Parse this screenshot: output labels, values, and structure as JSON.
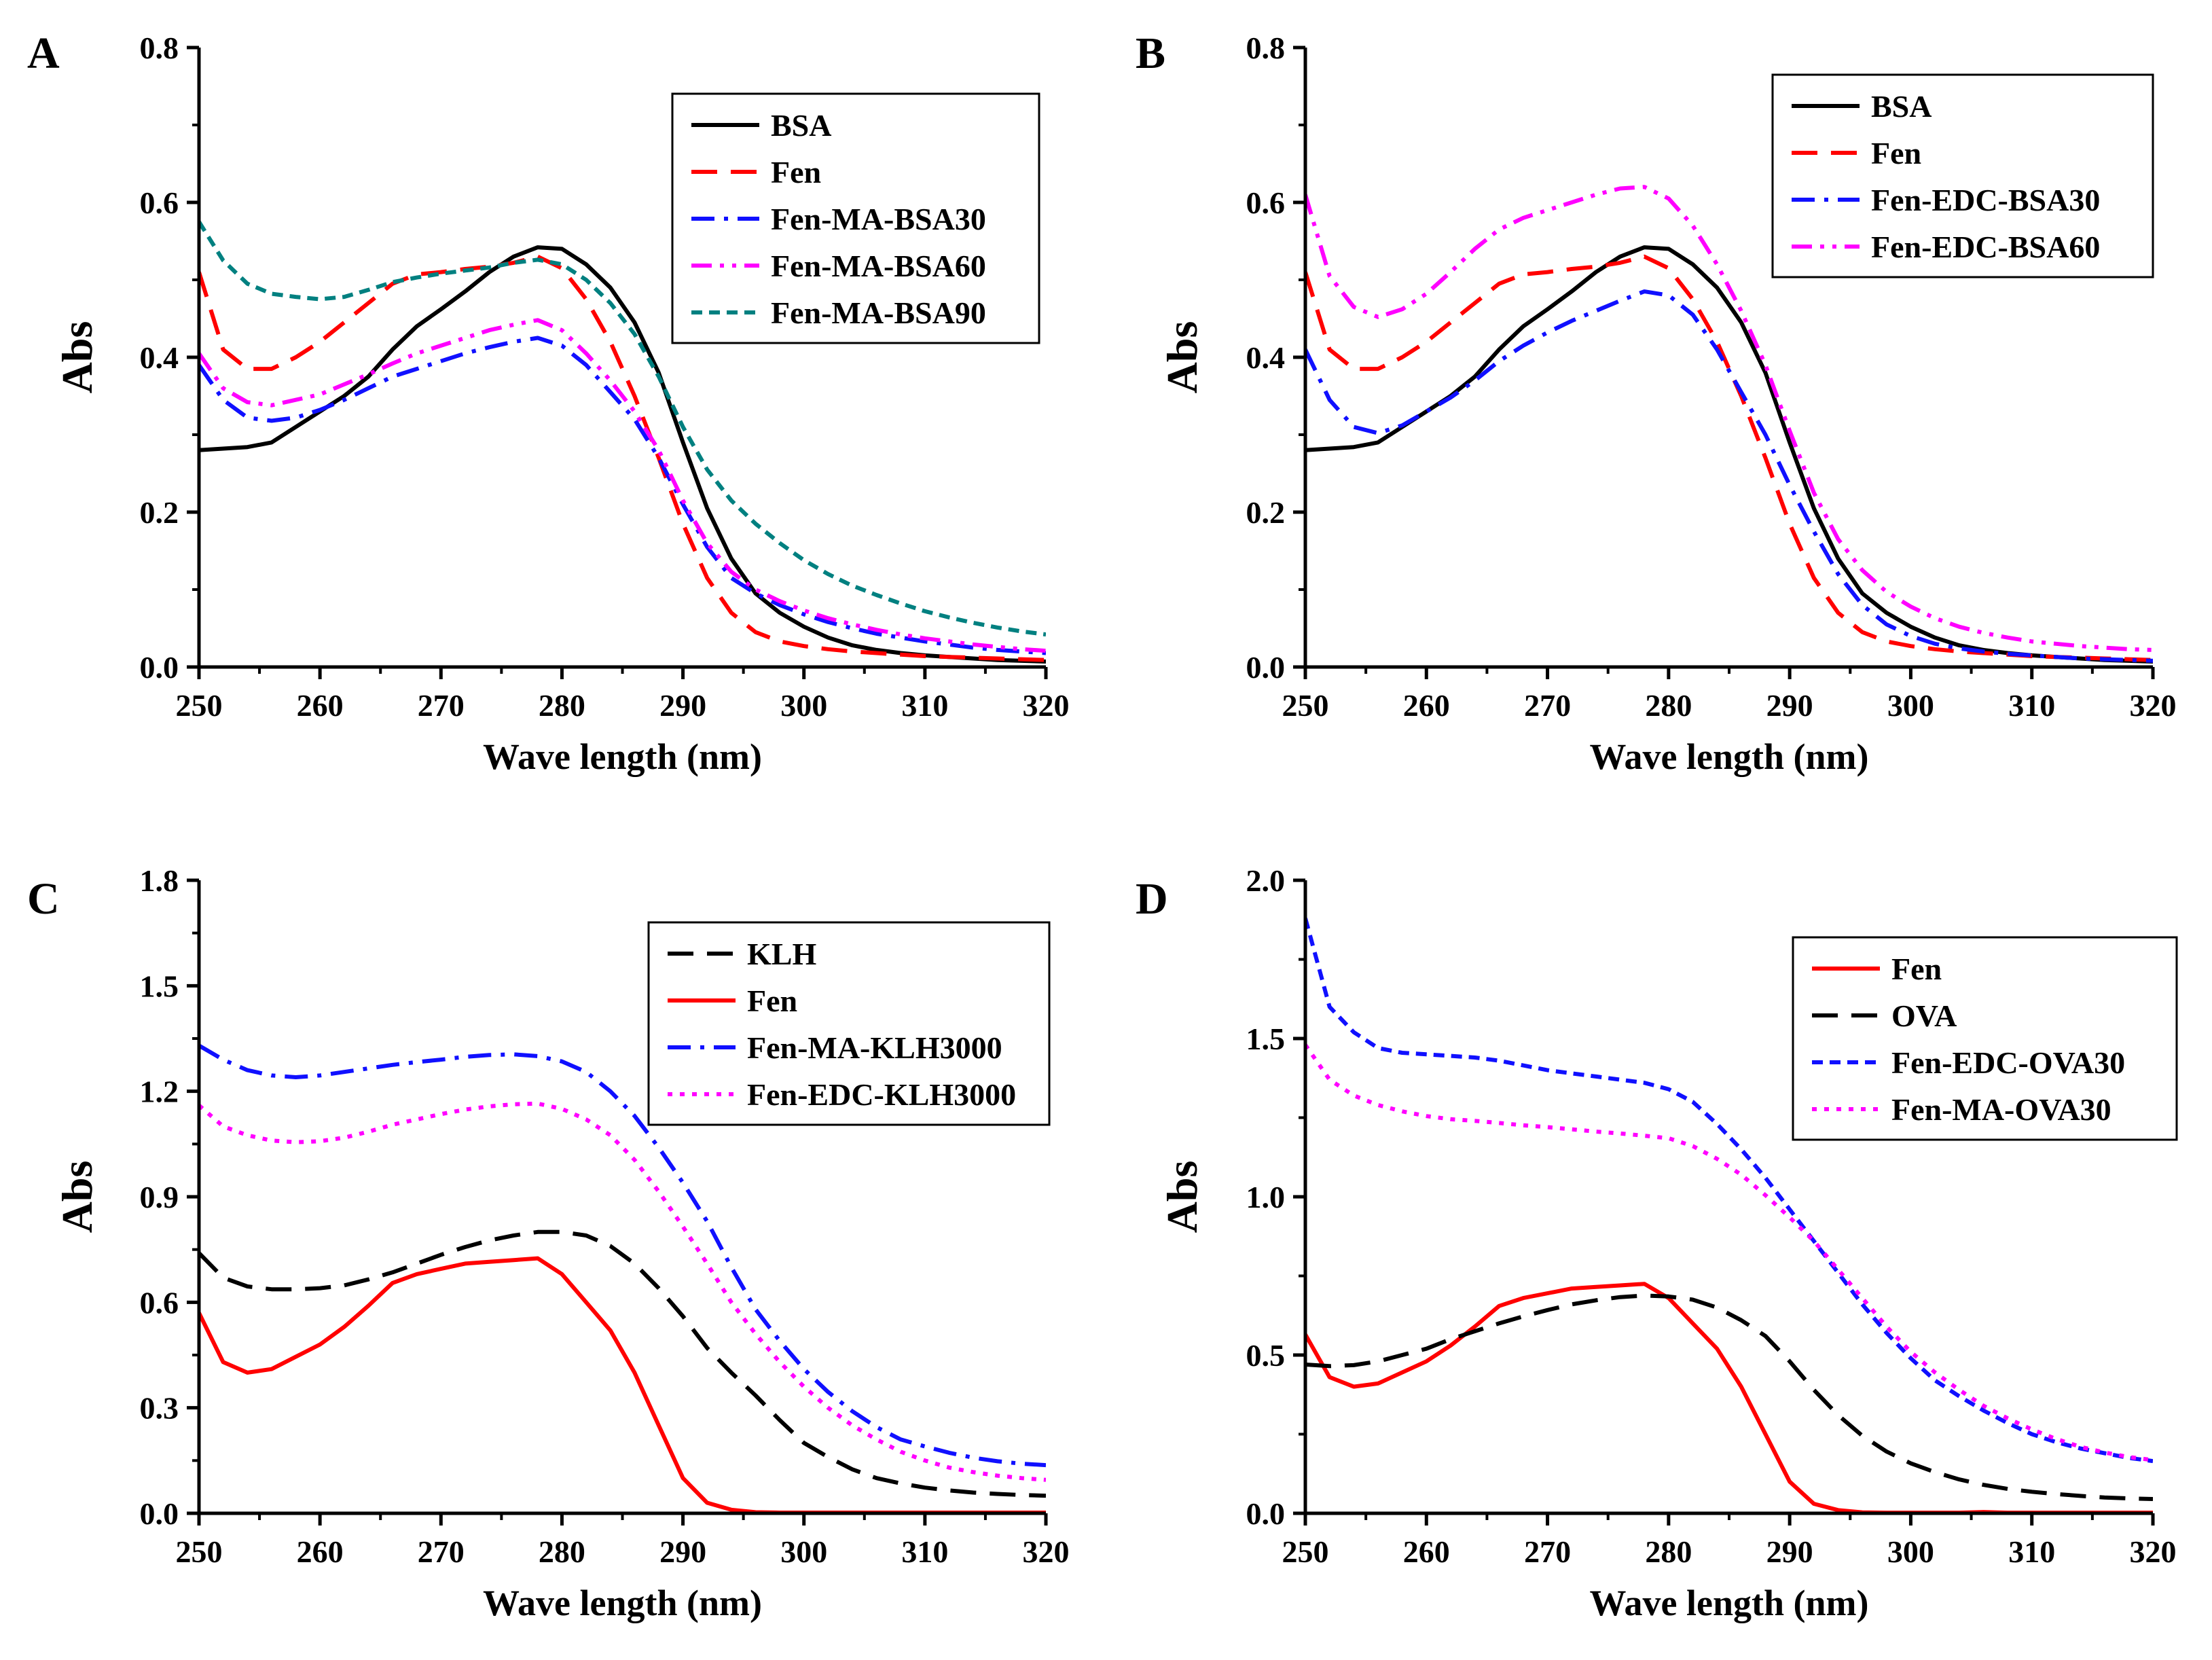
{
  "figure": {
    "panels": [
      {
        "label": "A"
      },
      {
        "label": "B"
      },
      {
        "label": "C"
      },
      {
        "label": "D"
      }
    ]
  },
  "chart_data": [
    {
      "panel": "A",
      "type": "line",
      "xlabel": "Wave length (nm)",
      "ylabel": "Abs",
      "xlim": [
        250,
        320
      ],
      "ylim": [
        0.0,
        0.8
      ],
      "xticks": [
        250,
        260,
        270,
        280,
        290,
        300,
        310,
        320
      ],
      "yticks": [
        0.0,
        0.2,
        0.4,
        0.6,
        0.8
      ],
      "ytick_labels": [
        "0.0",
        "0.2",
        "0.4",
        "0.6",
        "0.8"
      ],
      "legend_position": "top-right",
      "x": [
        250,
        252,
        254,
        256,
        258,
        260,
        262,
        264,
        266,
        268,
        270,
        272,
        274,
        276,
        278,
        280,
        282,
        284,
        286,
        288,
        290,
        292,
        294,
        296,
        298,
        300,
        302,
        304,
        306,
        308,
        310,
        312,
        314,
        316,
        318,
        320
      ],
      "series": [
        {
          "name": "BSA",
          "color": "#000000",
          "dash": "solid",
          "values": [
            0.28,
            0.282,
            0.284,
            0.29,
            0.31,
            0.33,
            0.35,
            0.375,
            0.41,
            0.44,
            0.462,
            0.485,
            0.51,
            0.53,
            0.542,
            0.54,
            0.52,
            0.49,
            0.445,
            0.38,
            0.29,
            0.205,
            0.14,
            0.095,
            0.07,
            0.052,
            0.038,
            0.028,
            0.022,
            0.018,
            0.015,
            0.013,
            0.011,
            0.009,
            0.008,
            0.007
          ]
        },
        {
          "name": "Fen",
          "color": "#ff0000",
          "dash": "dashed",
          "values": [
            0.51,
            0.41,
            0.385,
            0.385,
            0.4,
            0.42,
            0.445,
            0.47,
            0.495,
            0.507,
            0.51,
            0.514,
            0.517,
            0.522,
            0.53,
            0.515,
            0.475,
            0.42,
            0.35,
            0.27,
            0.185,
            0.115,
            0.07,
            0.045,
            0.033,
            0.027,
            0.023,
            0.02,
            0.018,
            0.016,
            0.014,
            0.013,
            0.012,
            0.011,
            0.01,
            0.009
          ]
        },
        {
          "name": "Fen-MA-BSA30",
          "color": "#1010ff",
          "dash": "dashdot",
          "values": [
            0.39,
            0.345,
            0.322,
            0.318,
            0.322,
            0.332,
            0.345,
            0.36,
            0.375,
            0.385,
            0.395,
            0.405,
            0.413,
            0.42,
            0.425,
            0.415,
            0.39,
            0.355,
            0.32,
            0.27,
            0.21,
            0.155,
            0.115,
            0.095,
            0.08,
            0.068,
            0.058,
            0.05,
            0.043,
            0.038,
            0.033,
            0.029,
            0.025,
            0.022,
            0.02,
            0.018
          ]
        },
        {
          "name": "Fen-MA-BSA60",
          "color": "#ff00ff",
          "dash": "dashdotdot",
          "values": [
            0.405,
            0.36,
            0.342,
            0.338,
            0.345,
            0.352,
            0.365,
            0.378,
            0.392,
            0.405,
            0.415,
            0.425,
            0.435,
            0.442,
            0.448,
            0.435,
            0.405,
            0.37,
            0.33,
            0.28,
            0.215,
            0.16,
            0.123,
            0.1,
            0.085,
            0.073,
            0.063,
            0.055,
            0.048,
            0.042,
            0.037,
            0.033,
            0.029,
            0.026,
            0.023,
            0.021
          ]
        },
        {
          "name": "Fen-MA-BSA90",
          "color": "#008080",
          "dash": "shortdash",
          "values": [
            0.575,
            0.525,
            0.495,
            0.482,
            0.478,
            0.475,
            0.478,
            0.487,
            0.497,
            0.503,
            0.508,
            0.512,
            0.516,
            0.522,
            0.526,
            0.52,
            0.5,
            0.47,
            0.43,
            0.375,
            0.31,
            0.255,
            0.215,
            0.185,
            0.16,
            0.138,
            0.12,
            0.105,
            0.093,
            0.082,
            0.072,
            0.064,
            0.057,
            0.051,
            0.046,
            0.042
          ]
        }
      ]
    },
    {
      "panel": "B",
      "type": "line",
      "xlabel": "Wave length (nm)",
      "ylabel": "Abs",
      "xlim": [
        250,
        320
      ],
      "ylim": [
        0.0,
        0.8
      ],
      "xticks": [
        250,
        260,
        270,
        280,
        290,
        300,
        310,
        320
      ],
      "yticks": [
        0.0,
        0.2,
        0.4,
        0.6,
        0.8
      ],
      "ytick_labels": [
        "0.0",
        "0.2",
        "0.4",
        "0.6",
        "0.8"
      ],
      "legend_position": "top-right",
      "x": [
        250,
        252,
        254,
        256,
        258,
        260,
        262,
        264,
        266,
        268,
        270,
        272,
        274,
        276,
        278,
        280,
        282,
        284,
        286,
        288,
        290,
        292,
        294,
        296,
        298,
        300,
        302,
        304,
        306,
        308,
        310,
        312,
        314,
        316,
        318,
        320
      ],
      "series": [
        {
          "name": "BSA",
          "color": "#000000",
          "dash": "solid",
          "values": [
            0.28,
            0.282,
            0.284,
            0.29,
            0.31,
            0.33,
            0.35,
            0.375,
            0.41,
            0.44,
            0.462,
            0.485,
            0.51,
            0.53,
            0.542,
            0.54,
            0.52,
            0.49,
            0.445,
            0.38,
            0.29,
            0.205,
            0.14,
            0.095,
            0.07,
            0.052,
            0.038,
            0.028,
            0.022,
            0.018,
            0.015,
            0.013,
            0.011,
            0.009,
            0.008,
            0.007
          ]
        },
        {
          "name": "Fen",
          "color": "#ff0000",
          "dash": "dashed",
          "values": [
            0.51,
            0.41,
            0.385,
            0.385,
            0.4,
            0.42,
            0.445,
            0.47,
            0.495,
            0.507,
            0.51,
            0.514,
            0.517,
            0.522,
            0.53,
            0.515,
            0.475,
            0.42,
            0.35,
            0.27,
            0.185,
            0.115,
            0.07,
            0.045,
            0.033,
            0.027,
            0.023,
            0.02,
            0.018,
            0.016,
            0.014,
            0.013,
            0.012,
            0.011,
            0.01,
            0.009
          ]
        },
        {
          "name": "Fen-EDC-BSA30",
          "color": "#1010ff",
          "dash": "dashdot",
          "values": [
            0.41,
            0.345,
            0.31,
            0.302,
            0.312,
            0.33,
            0.348,
            0.37,
            0.395,
            0.415,
            0.432,
            0.447,
            0.46,
            0.473,
            0.485,
            0.48,
            0.455,
            0.41,
            0.355,
            0.3,
            0.235,
            0.175,
            0.12,
            0.08,
            0.055,
            0.04,
            0.03,
            0.024,
            0.02,
            0.017,
            0.015,
            0.013,
            0.011,
            0.01,
            0.009,
            0.008
          ]
        },
        {
          "name": "Fen-EDC-BSA60",
          "color": "#ff00ff",
          "dash": "dashdotdot",
          "values": [
            0.61,
            0.505,
            0.465,
            0.452,
            0.462,
            0.482,
            0.51,
            0.54,
            0.565,
            0.58,
            0.59,
            0.6,
            0.61,
            0.618,
            0.62,
            0.605,
            0.57,
            0.52,
            0.46,
            0.39,
            0.305,
            0.225,
            0.165,
            0.125,
            0.097,
            0.078,
            0.063,
            0.052,
            0.044,
            0.038,
            0.033,
            0.03,
            0.027,
            0.025,
            0.023,
            0.022
          ]
        }
      ]
    },
    {
      "panel": "C",
      "type": "line",
      "xlabel": "Wave length (nm)",
      "ylabel": "Abs",
      "xlim": [
        250,
        320
      ],
      "ylim": [
        0.0,
        1.8
      ],
      "xticks": [
        250,
        260,
        270,
        280,
        290,
        300,
        310,
        320
      ],
      "yticks": [
        0.0,
        0.3,
        0.6,
        0.9,
        1.2,
        1.5,
        1.8
      ],
      "ytick_labels": [
        "0.0",
        "0.3",
        "0.6",
        "0.9",
        "1.2",
        "1.5",
        "1.8"
      ],
      "legend_position": "top-right",
      "x": [
        250,
        252,
        254,
        256,
        258,
        260,
        262,
        264,
        266,
        268,
        270,
        272,
        274,
        276,
        278,
        280,
        282,
        284,
        286,
        288,
        290,
        292,
        294,
        296,
        298,
        300,
        302,
        304,
        306,
        308,
        310,
        312,
        314,
        316,
        318,
        320
      ],
      "series": [
        {
          "name": "KLH",
          "color": "#000000",
          "dash": "dashed",
          "values": [
            0.74,
            0.67,
            0.645,
            0.637,
            0.637,
            0.64,
            0.648,
            0.665,
            0.685,
            0.71,
            0.735,
            0.757,
            0.776,
            0.79,
            0.8,
            0.8,
            0.79,
            0.76,
            0.71,
            0.64,
            0.56,
            0.47,
            0.4,
            0.335,
            0.265,
            0.2,
            0.16,
            0.125,
            0.1,
            0.085,
            0.073,
            0.065,
            0.059,
            0.055,
            0.052,
            0.05
          ]
        },
        {
          "name": "Fen",
          "color": "#ff0000",
          "dash": "solid",
          "values": [
            0.57,
            0.43,
            0.4,
            0.41,
            0.445,
            0.48,
            0.53,
            0.59,
            0.655,
            0.68,
            0.695,
            0.71,
            0.715,
            0.72,
            0.725,
            0.68,
            0.6,
            0.52,
            0.4,
            0.25,
            0.1,
            0.03,
            0.01,
            0.003,
            0.002,
            0.002,
            0.002,
            0.002,
            0.002,
            0.002,
            0.002,
            0.002,
            0.002,
            0.002,
            0.002,
            0.002
          ]
        },
        {
          "name": "Fen-MA-KLH3000",
          "color": "#1010ff",
          "dash": "dashdot",
          "values": [
            1.33,
            1.29,
            1.26,
            1.245,
            1.24,
            1.245,
            1.255,
            1.265,
            1.275,
            1.283,
            1.29,
            1.298,
            1.303,
            1.305,
            1.3,
            1.285,
            1.255,
            1.2,
            1.13,
            1.04,
            0.94,
            0.83,
            0.7,
            0.58,
            0.49,
            0.41,
            0.345,
            0.29,
            0.245,
            0.21,
            0.19,
            0.172,
            0.158,
            0.148,
            0.141,
            0.137
          ]
        },
        {
          "name": "Fen-EDC-KLH3000",
          "color": "#ff00ff",
          "dash": "dotted",
          "values": [
            1.16,
            1.1,
            1.075,
            1.06,
            1.055,
            1.058,
            1.068,
            1.085,
            1.105,
            1.12,
            1.135,
            1.148,
            1.157,
            1.163,
            1.165,
            1.15,
            1.12,
            1.075,
            1.005,
            0.915,
            0.815,
            0.71,
            0.6,
            0.51,
            0.43,
            0.36,
            0.3,
            0.25,
            0.21,
            0.175,
            0.15,
            0.13,
            0.117,
            0.107,
            0.1,
            0.095
          ]
        }
      ]
    },
    {
      "panel": "D",
      "type": "line",
      "xlabel": "Wave length (nm)",
      "ylabel": "Abs",
      "xlim": [
        250,
        320
      ],
      "ylim": [
        0.0,
        2.0
      ],
      "xticks": [
        250,
        260,
        270,
        280,
        290,
        300,
        310,
        320
      ],
      "yticks": [
        0.0,
        0.5,
        1.0,
        1.5,
        2.0
      ],
      "ytick_labels": [
        "0.0",
        "0.5",
        "1.0",
        "1.5",
        "2.0"
      ],
      "legend_position": "top-right",
      "x": [
        250,
        252,
        254,
        256,
        258,
        260,
        262,
        264,
        266,
        268,
        270,
        272,
        274,
        276,
        278,
        280,
        282,
        284,
        286,
        288,
        290,
        292,
        294,
        296,
        298,
        300,
        302,
        304,
        306,
        308,
        310,
        312,
        314,
        316,
        318,
        320
      ],
      "series": [
        {
          "name": "Fen",
          "color": "#ff0000",
          "dash": "solid",
          "values": [
            0.565,
            0.43,
            0.4,
            0.41,
            0.445,
            0.48,
            0.53,
            0.59,
            0.655,
            0.68,
            0.695,
            0.71,
            0.715,
            0.72,
            0.725,
            0.68,
            0.6,
            0.52,
            0.4,
            0.25,
            0.1,
            0.03,
            0.01,
            0.003,
            0.002,
            0.002,
            0.002,
            0.002,
            0.004,
            0.002,
            0.002,
            0.002,
            0.002,
            0.002,
            0.002,
            0.002
          ]
        },
        {
          "name": "OVA",
          "color": "#000000",
          "dash": "dashed",
          "values": [
            0.47,
            0.465,
            0.468,
            0.48,
            0.5,
            0.52,
            0.55,
            0.575,
            0.6,
            0.622,
            0.642,
            0.66,
            0.673,
            0.683,
            0.688,
            0.685,
            0.675,
            0.65,
            0.61,
            0.56,
            0.48,
            0.39,
            0.31,
            0.245,
            0.195,
            0.158,
            0.13,
            0.107,
            0.09,
            0.077,
            0.068,
            0.061,
            0.055,
            0.05,
            0.047,
            0.045
          ]
        },
        {
          "name": "Fen-EDC-OVA30",
          "color": "#1010ff",
          "dash": "shortdash",
          "values": [
            1.88,
            1.6,
            1.52,
            1.47,
            1.455,
            1.45,
            1.445,
            1.44,
            1.43,
            1.415,
            1.4,
            1.39,
            1.38,
            1.37,
            1.36,
            1.34,
            1.3,
            1.23,
            1.15,
            1.06,
            0.96,
            0.86,
            0.76,
            0.66,
            0.57,
            0.49,
            0.42,
            0.37,
            0.325,
            0.285,
            0.25,
            0.225,
            0.205,
            0.19,
            0.175,
            0.165
          ]
        },
        {
          "name": "Fen-MA-OVA30",
          "color": "#ff00ff",
          "dash": "dotted",
          "values": [
            1.48,
            1.37,
            1.32,
            1.29,
            1.27,
            1.255,
            1.245,
            1.24,
            1.233,
            1.226,
            1.22,
            1.213,
            1.206,
            1.2,
            1.193,
            1.185,
            1.16,
            1.12,
            1.07,
            1.005,
            0.935,
            0.86,
            0.77,
            0.68,
            0.59,
            0.51,
            0.445,
            0.39,
            0.34,
            0.3,
            0.265,
            0.235,
            0.21,
            0.192,
            0.178,
            0.168
          ]
        }
      ]
    }
  ]
}
